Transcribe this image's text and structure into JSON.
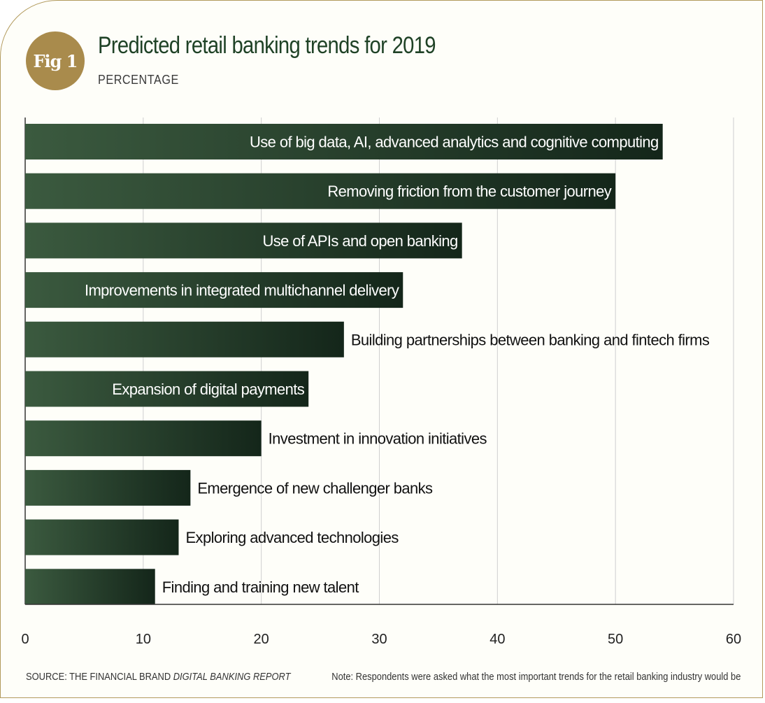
{
  "header": {
    "badge": "Fig 1",
    "title": "Predicted retail banking trends for 2019",
    "subtitle": "PERCENTAGE"
  },
  "footer": {
    "source_prefix": "SOURCE: THE FINANCIAL BRAND ",
    "source_italic": "DIGITAL BANKING REPORT",
    "note": "Note: Respondents were asked what the most important trends for the retail banking industry would be"
  },
  "colors": {
    "bar_start": "#3b5a3f",
    "bar_end": "#14261a",
    "accent": "#a98b4c",
    "title": "#1f4226"
  },
  "chart_data": {
    "type": "bar",
    "orientation": "horizontal",
    "categories": [
      "Use of big data, AI, advanced analytics and cognitive computing",
      "Removing friction from the customer journey",
      "Use of APIs and open banking",
      "Improvements in integrated multichannel delivery",
      "Building partnerships between banking and fintech firms",
      "Expansion of digital payments",
      "Investment in innovation initiatives",
      "Emergence of new challenger banks",
      "Exploring advanced technologies",
      "Finding and training new talent"
    ],
    "values": [
      54,
      50,
      37,
      32,
      27,
      24,
      20,
      14,
      13,
      11
    ],
    "xlim": [
      0,
      60
    ],
    "xticks": [
      "0",
      "10",
      "20",
      "30",
      "40",
      "50",
      "60"
    ],
    "grid": true,
    "xlabel": "",
    "ylabel": ""
  }
}
